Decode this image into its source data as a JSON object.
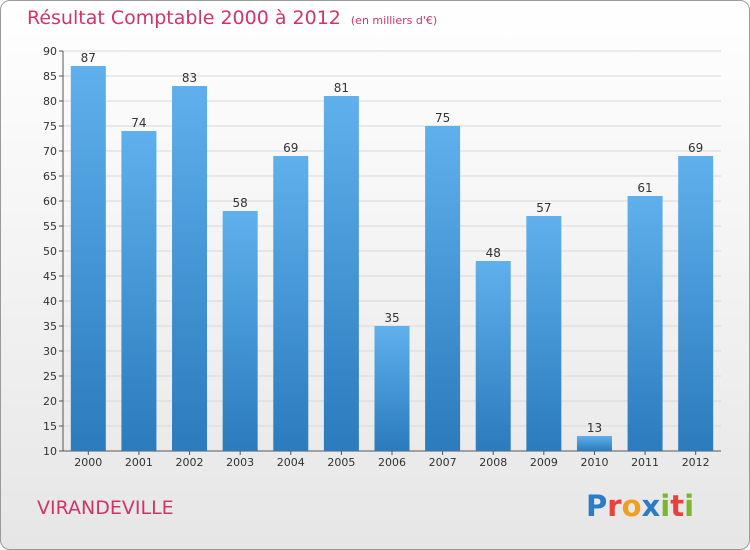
{
  "header": {
    "title": "Résultat Comptable 2000 à 2012",
    "subtitle": "(en milliers d'€)"
  },
  "footer": {
    "town": "VIRANDEVILLE",
    "logo": {
      "text": "Proxiti",
      "letters": [
        "P",
        "r",
        "o",
        "x",
        "i",
        "t",
        "i"
      ],
      "colors": [
        "#2a7cc7",
        "#e8423c",
        "#f0a020",
        "#2a7cc7",
        "#7ab62e",
        "#e8423c",
        "#7ab62e"
      ]
    }
  },
  "colors": {
    "bar_light": "#5fb0ec",
    "bar_dark": "#2b7bbd",
    "title": "#d0346b",
    "grid": "#d8d8d8"
  },
  "chart_data": {
    "type": "bar",
    "title": "Résultat Comptable 2000 à 2012",
    "xlabel": "",
    "ylabel": "en milliers d'€",
    "categories": [
      "2000",
      "2001",
      "2002",
      "2003",
      "2004",
      "2005",
      "2006",
      "2007",
      "2008",
      "2009",
      "2010",
      "2011",
      "2012"
    ],
    "values": [
      87,
      74,
      83,
      58,
      69,
      81,
      35,
      75,
      48,
      57,
      13,
      61,
      69
    ],
    "ylim": [
      10,
      90
    ],
    "yticks": [
      10,
      15,
      20,
      25,
      30,
      35,
      40,
      45,
      50,
      55,
      60,
      65,
      70,
      75,
      80,
      85,
      90
    ],
    "grid": true
  }
}
